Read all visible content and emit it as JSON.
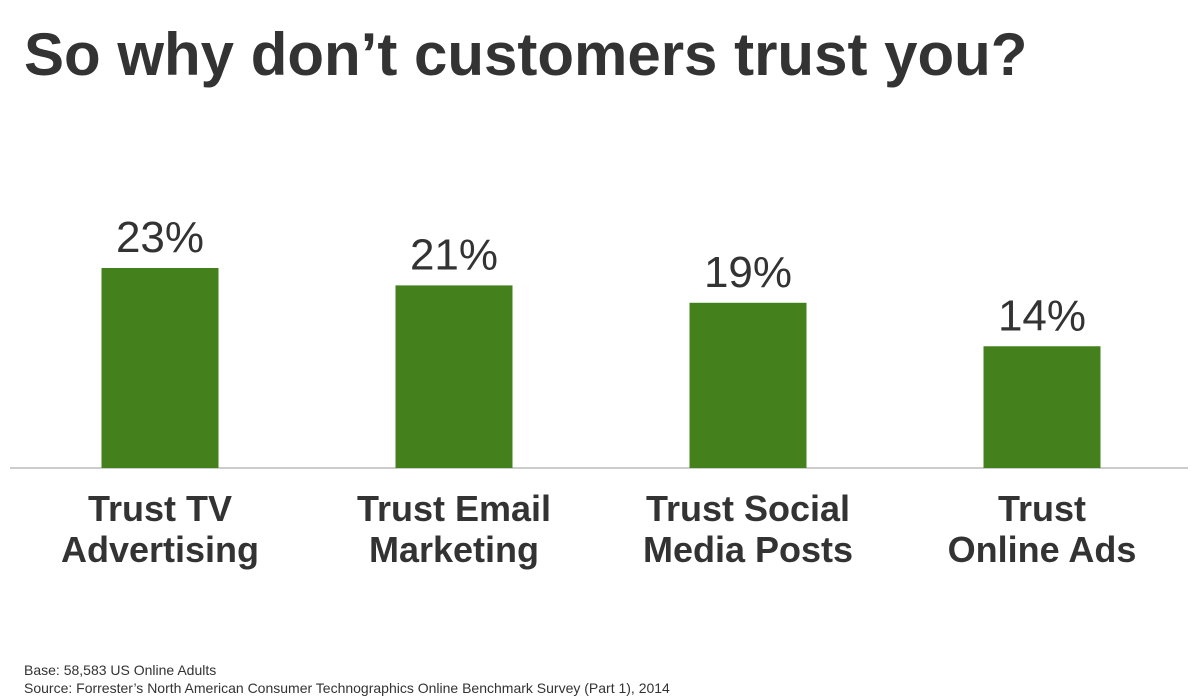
{
  "title": "So why don’t customers trust you?",
  "chart_data": {
    "type": "bar",
    "categories": [
      [
        "Trust TV",
        "Advertising"
      ],
      [
        "Trust Email",
        "Marketing"
      ],
      [
        "Trust Social",
        "Media Posts"
      ],
      [
        "Trust",
        "Online Ads"
      ]
    ],
    "values": [
      23,
      21,
      19,
      14
    ],
    "value_labels": [
      "23%",
      "21%",
      "19%",
      "14%"
    ],
    "unit": "%",
    "bar_color": "#44801c",
    "axis_color": "#999999",
    "grid": false,
    "legend": "none",
    "ylim": [
      0,
      23
    ]
  },
  "footnotes": {
    "base": "Base: 58,583 US Online Adults",
    "source": "Source: Forrester’s North American Consumer Technographics Online Benchmark Survey (Part 1), 2014"
  }
}
